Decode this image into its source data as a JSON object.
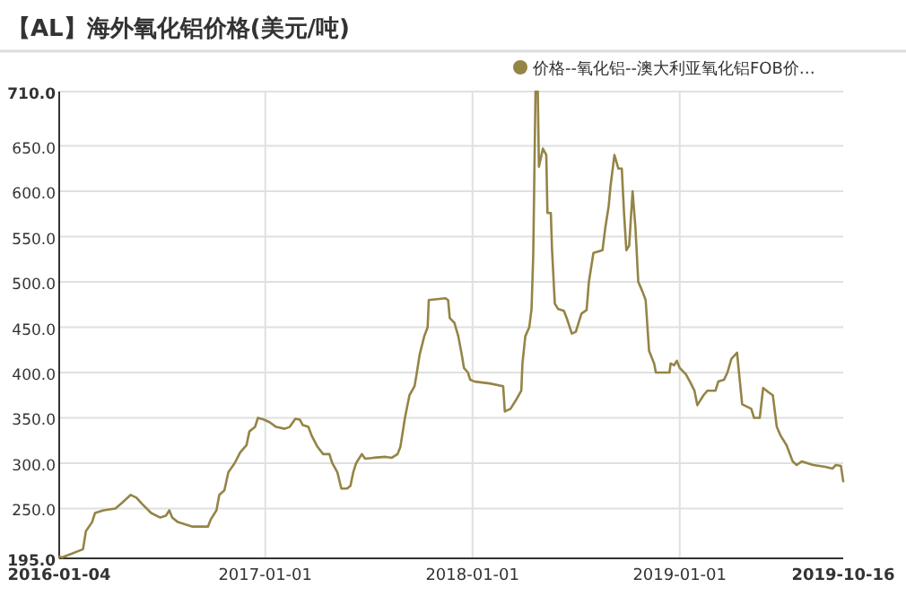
{
  "chart_data": {
    "type": "line",
    "title": "【AL】海外氧化铝价格(美元/吨)",
    "legend": "top right",
    "marker": "none",
    "grid": true,
    "x": [
      "2016-01-04",
      "2016-01-09",
      "2016-02-15",
      "2016-02-20",
      "2016-03-02",
      "2016-03-07",
      "2016-03-22",
      "2016-04-12",
      "2016-04-23",
      "2016-05-09",
      "2016-05-19",
      "2016-05-29",
      "2016-06-14",
      "2016-06-30",
      "2016-07-10",
      "2016-07-16",
      "2016-07-21",
      "2016-07-31",
      "2016-08-11",
      "2016-08-26",
      "2016-09-22",
      "2016-09-27",
      "2016-10-07",
      "2016-10-12",
      "2016-10-21",
      "2016-10-28",
      "2016-11-08",
      "2016-11-18",
      "2016-11-29",
      "2016-12-04",
      "2016-12-14",
      "2016-12-19",
      "2016-12-30",
      "2017-01-09",
      "2017-01-20",
      "2017-02-04",
      "2017-02-13",
      "2017-02-23",
      "2017-03-03",
      "2017-03-08",
      "2017-03-18",
      "2017-03-24",
      "2017-04-03",
      "2017-04-13",
      "2017-04-24",
      "2017-04-29",
      "2017-05-08",
      "2017-05-15",
      "2017-05-25",
      "2017-05-31",
      "2017-06-05",
      "2017-06-10",
      "2017-06-20",
      "2017-06-26",
      "2017-07-11",
      "2017-08-01",
      "2017-08-12",
      "2017-08-22",
      "2017-08-27",
      "2017-09-04",
      "2017-09-12",
      "2017-09-21",
      "2017-09-25",
      "2017-09-30",
      "2017-10-08",
      "2017-10-14",
      "2017-10-16",
      "2017-11-14",
      "2017-11-19",
      "2017-11-22",
      "2017-11-30",
      "2017-12-07",
      "2017-12-13",
      "2017-12-17",
      "2017-12-24",
      "2017-12-28",
      "2018-01-05",
      "2018-01-31",
      "2018-02-24",
      "2018-02-27",
      "2018-03-09",
      "2018-03-19",
      "2018-03-28",
      "2018-03-30",
      "2018-04-04",
      "2018-04-11",
      "2018-04-15",
      "2018-04-18",
      "2018-04-22",
      "2018-04-26",
      "2018-04-28",
      "2018-05-05",
      "2018-05-11",
      "2018-05-13",
      "2018-05-19",
      "2018-05-21",
      "2018-05-26",
      "2018-06-01",
      "2018-06-11",
      "2018-06-16",
      "2018-06-25",
      "2018-07-02",
      "2018-07-07",
      "2018-07-12",
      "2018-07-21",
      "2018-07-25",
      "2018-08-02",
      "2018-08-18",
      "2018-08-23",
      "2018-08-29",
      "2018-09-01",
      "2018-09-08",
      "2018-09-15",
      "2018-09-21",
      "2018-09-25",
      "2018-09-29",
      "2018-10-04",
      "2018-10-10",
      "2018-10-15",
      "2018-10-20",
      "2018-10-27",
      "2018-11-02",
      "2018-11-08",
      "2018-11-17",
      "2018-11-20",
      "2018-12-14",
      "2018-12-16",
      "2018-12-22",
      "2018-12-27",
      "2019-01-01",
      "2019-01-12",
      "2019-01-19",
      "2019-01-27",
      "2019-02-01",
      "2019-02-12",
      "2019-02-19",
      "2019-03-05",
      "2019-03-10",
      "2019-03-20",
      "2019-03-26",
      "2019-04-02",
      "2019-04-12",
      "2019-04-21",
      "2019-05-07",
      "2019-05-12",
      "2019-05-22",
      "2019-05-28",
      "2019-06-07",
      "2019-06-14",
      "2019-06-21",
      "2019-06-28",
      "2019-07-08",
      "2019-07-19",
      "2019-07-26",
      "2019-08-04",
      "2019-08-14",
      "2019-08-24",
      "2019-09-14",
      "2019-09-27",
      "2019-10-03",
      "2019-10-12",
      "2019-10-16"
    ],
    "series": [
      {
        "name": "价格--氧化铝--澳大利亚氧化铝FOB价…",
        "color": "#948446",
        "values": [
          197,
          196,
          205,
          225,
          235,
          245,
          248,
          250,
          256,
          265,
          262,
          255,
          245,
          240,
          242,
          248,
          240,
          235,
          233,
          230,
          230,
          238,
          248,
          265,
          270,
          290,
          300,
          312,
          320,
          335,
          340,
          350,
          348,
          345,
          340,
          338,
          340,
          349,
          348,
          342,
          340,
          330,
          318,
          310,
          310,
          300,
          290,
          272,
          272,
          275,
          290,
          300,
          310,
          305,
          306,
          307,
          306,
          310,
          318,
          350,
          375,
          385,
          400,
          420,
          440,
          450,
          480,
          482,
          480,
          460,
          455,
          440,
          420,
          405,
          400,
          392,
          390,
          388,
          385,
          357,
          360,
          370,
          380,
          410,
          440,
          450,
          470,
          530,
          710,
          710,
          627,
          647,
          640,
          576,
          576,
          537,
          476,
          470,
          468,
          460,
          443,
          445,
          455,
          465,
          469,
          500,
          532,
          535,
          560,
          584,
          605,
          640,
          625,
          625,
          575,
          535,
          540,
          600,
          560,
          500,
          490,
          480,
          424,
          410,
          400,
          400,
          410,
          408,
          413,
          405,
          398,
          390,
          380,
          364,
          375,
          380,
          380,
          390,
          392,
          400,
          415,
          422,
          365,
          360,
          350,
          350,
          383,
          378,
          375,
          340,
          330,
          320,
          302,
          298,
          302,
          300,
          298,
          296,
          294,
          298,
          297,
          280
        ]
      }
    ],
    "xlim": [
      "2016-01-04",
      "2019-10-16"
    ],
    "xticks": [
      "2016-01-04",
      "2017-01-01",
      "2018-01-01",
      "2019-01-01",
      "2019-10-16"
    ],
    "ylim": [
      195,
      710
    ],
    "yticks": [
      {
        "value": 195,
        "label": "195.0"
      },
      {
        "value": 250,
        "label": "250.0"
      },
      {
        "value": 300,
        "label": "300.0"
      },
      {
        "value": 350,
        "label": "350.0"
      },
      {
        "value": 400,
        "label": "400.0"
      },
      {
        "value": 450,
        "label": "450.0"
      },
      {
        "value": 500,
        "label": "500.0"
      },
      {
        "value": 550,
        "label": "550.0"
      },
      {
        "value": 600,
        "label": "600.0"
      },
      {
        "value": 650,
        "label": "650.0"
      },
      {
        "value": 710,
        "label": "710.0"
      }
    ]
  }
}
